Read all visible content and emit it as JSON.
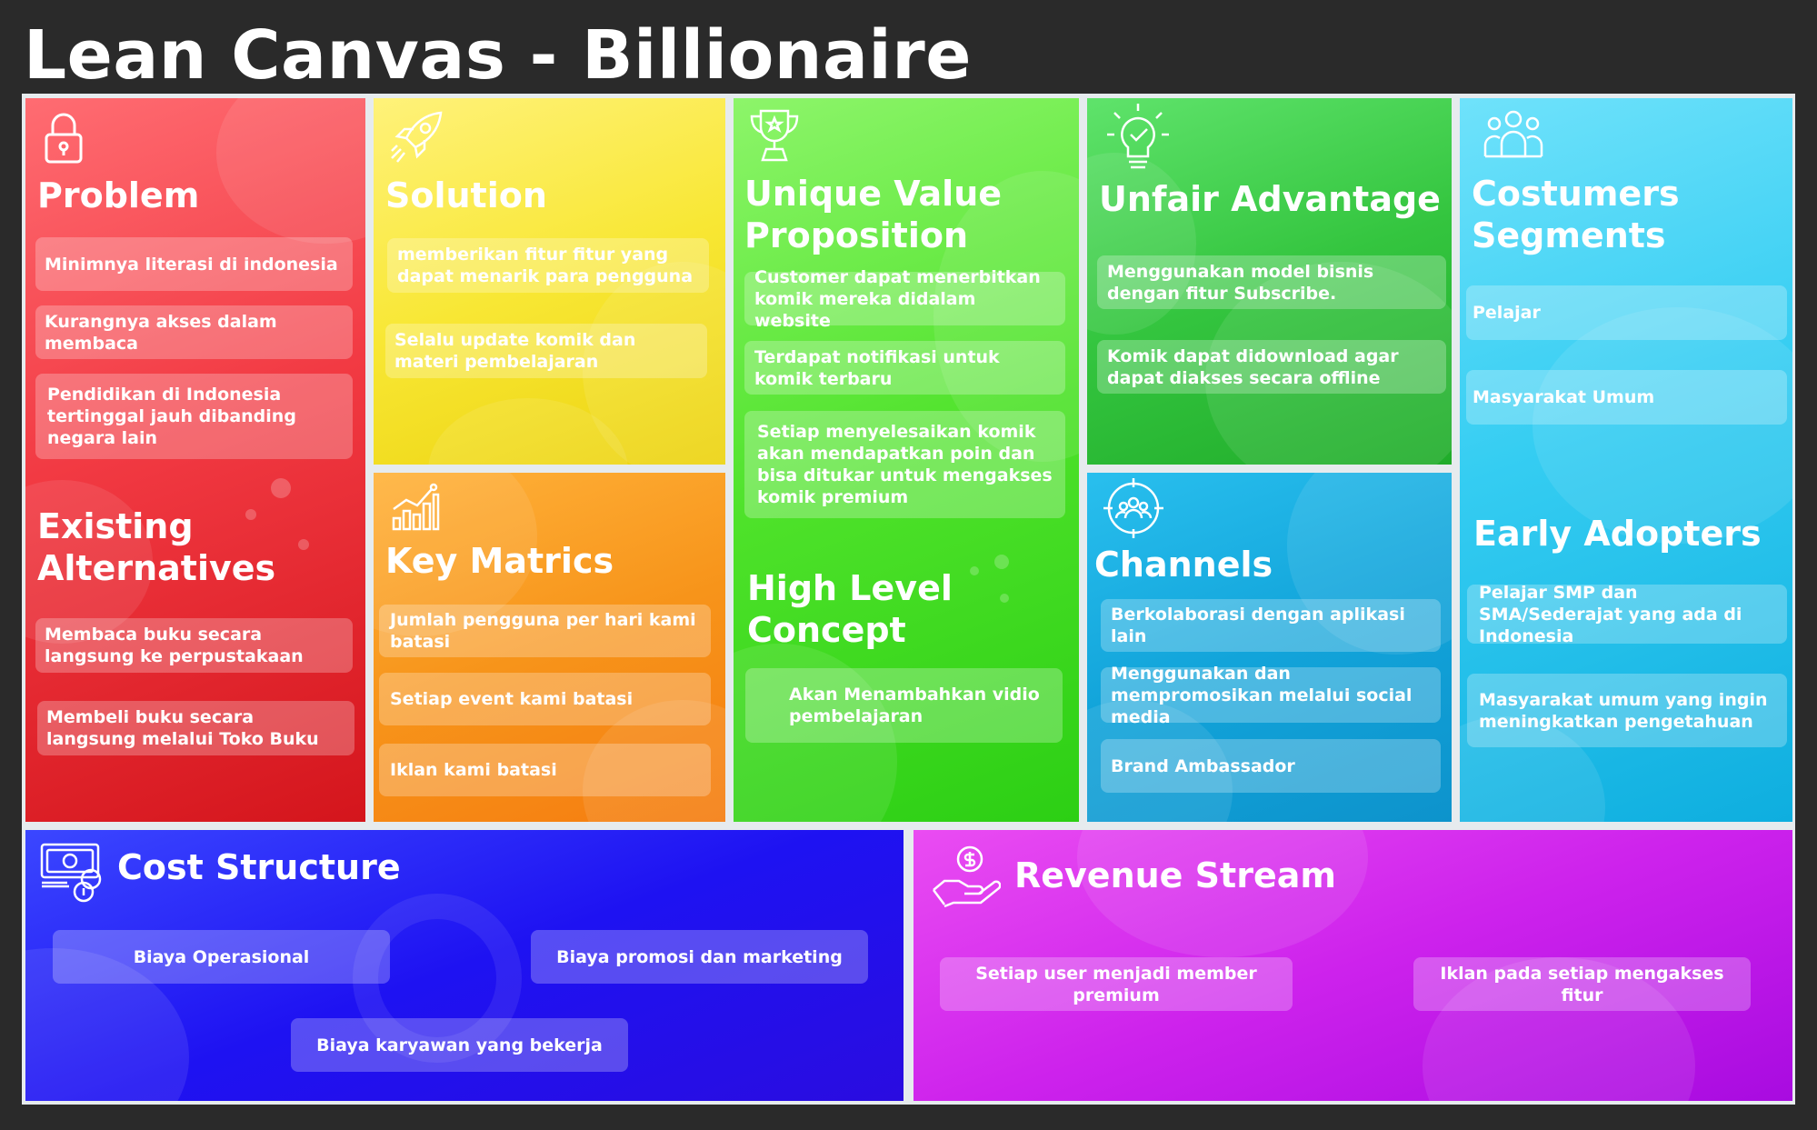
{
  "page": {
    "title": "Lean Canvas - Billionaire"
  },
  "problem": {
    "heading": "Problem",
    "items": [
      "Minimnya literasi di indonesia",
      "Kurangnya akses dalam membaca",
      "Pendidikan di Indonesia tertinggal jauh dibanding negara lain"
    ]
  },
  "alternatives": {
    "heading": "Existing Alternatives",
    "items": [
      "Membaca buku secara langsung ke perpustakaan",
      "Membeli buku secara langsung melalui Toko Buku"
    ]
  },
  "solution": {
    "heading": "Solution",
    "items": [
      "memberikan fitur fitur yang dapat menarik para pengguna",
      "Selalu update komik dan materi pembelajaran"
    ]
  },
  "metrics": {
    "heading": "Key Matrics",
    "items": [
      "Jumlah pengguna per hari kami batasi",
      "Setiap event kami batasi",
      "Iklan kami batasi"
    ]
  },
  "uvp": {
    "heading": "Unique Value Proposition",
    "items": [
      "Customer dapat menerbitkan komik mereka didalam website",
      "Terdapat notifikasi untuk komik terbaru",
      "Setiap menyelesaikan komik akan mendapatkan poin dan bisa ditukar untuk mengakses komik premium"
    ]
  },
  "high_level": {
    "heading": "High Level Concept",
    "items": [
      "Akan Menambahkan vidio pembelajaran"
    ]
  },
  "unfair": {
    "heading": "Unfair Advantage",
    "items": [
      "Menggunakan model bisnis dengan fitur Subscribe.",
      "Komik dapat didownload agar dapat diakses secara offline"
    ]
  },
  "channels": {
    "heading": "Channels",
    "items": [
      "Berkolaborasi dengan aplikasi lain",
      "Menggunakan dan mempromosikan melalui social media",
      "Brand Ambassador"
    ]
  },
  "segments": {
    "heading": "Costumers Segments",
    "items": [
      "Pelajar",
      "Masyarakat Umum"
    ]
  },
  "early": {
    "heading": "Early Adopters",
    "items": [
      "Pelajar SMP dan SMA/Sederajat yang ada di Indonesia",
      "Masyarakat umum yang ingin meningkatkan pengetahuan"
    ]
  },
  "cost": {
    "heading": "Cost Structure",
    "items": [
      "Biaya Operasional",
      "Biaya promosi dan marketing",
      "Biaya karyawan yang bekerja"
    ]
  },
  "revenue": {
    "heading": "Revenue Stream",
    "items": [
      "Setiap user menjadi member premium",
      "Iklan pada setiap mengakses fitur"
    ]
  },
  "icons": {
    "problem": "lock-icon",
    "solution": "rocket-icon",
    "metrics": "bar-chart-icon",
    "uvp": "trophy-icon",
    "unfair": "lightbulb-check-icon",
    "channels": "target-people-icon",
    "segments": "people-group-icon",
    "cost": "money-coins-icon",
    "revenue": "hand-dollar-icon"
  }
}
